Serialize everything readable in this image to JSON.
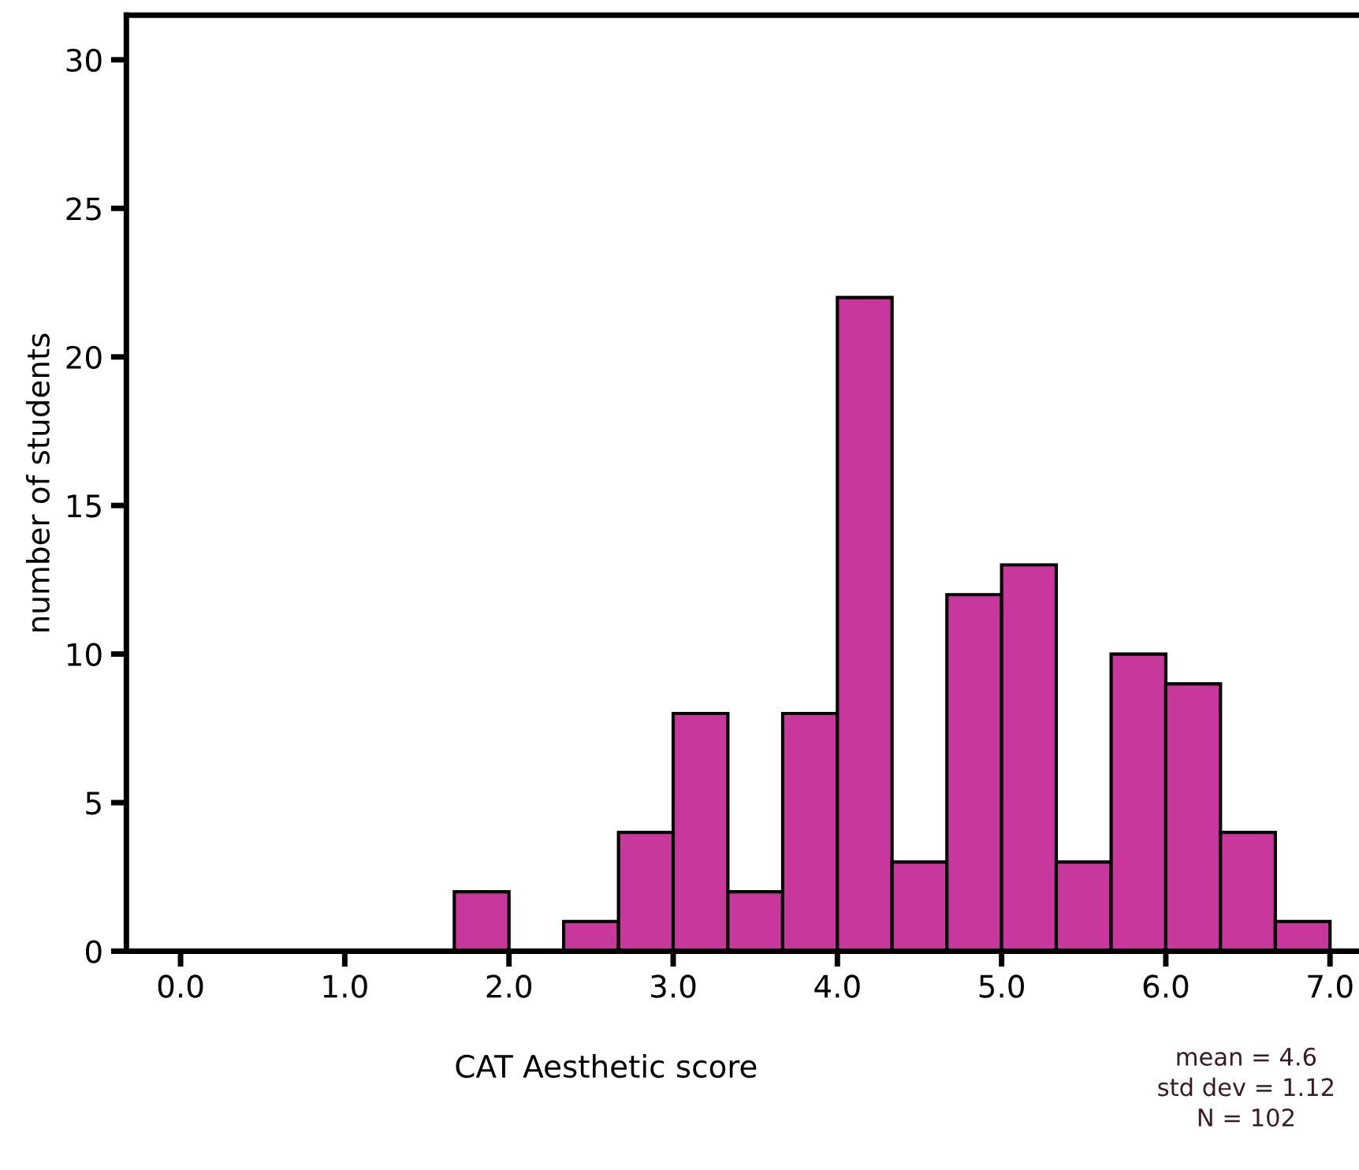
{
  "chart_data": {
    "type": "histogram",
    "xlabel": "CAT Aesthetic score",
    "ylabel": "number of students",
    "bins": [
      1.667,
      2,
      2.333,
      2.667,
      3,
      3.333,
      3.667,
      4,
      4.333,
      4.667,
      5,
      5.333,
      5.667,
      6,
      6.333,
      6.667,
      7
    ],
    "values": [
      2,
      0,
      1,
      4,
      8,
      2,
      8,
      22,
      3,
      12,
      13,
      3,
      10,
      9,
      4,
      1
    ],
    "color": "#c8379b",
    "xlim": [
      -0.33,
      7.16
    ],
    "xticks": [
      {
        "value": 0,
        "label": "0.0"
      },
      {
        "value": 1,
        "label": "1.0"
      },
      {
        "value": 2,
        "label": "2.0"
      },
      {
        "value": 3,
        "label": "3.0"
      },
      {
        "value": 4,
        "label": "4.0"
      },
      {
        "value": 5,
        "label": "5.0"
      },
      {
        "value": 6,
        "label": "6.0"
      },
      {
        "value": 7,
        "label": "7.0"
      }
    ],
    "ylim": [
      0,
      31.5
    ],
    "yticks": [
      0,
      5,
      10,
      15,
      20,
      25,
      30
    ],
    "grid": false,
    "legend": false,
    "annotations": [
      "mean = 4.6",
      "std dev = 1.12",
      "N = 102"
    ]
  }
}
